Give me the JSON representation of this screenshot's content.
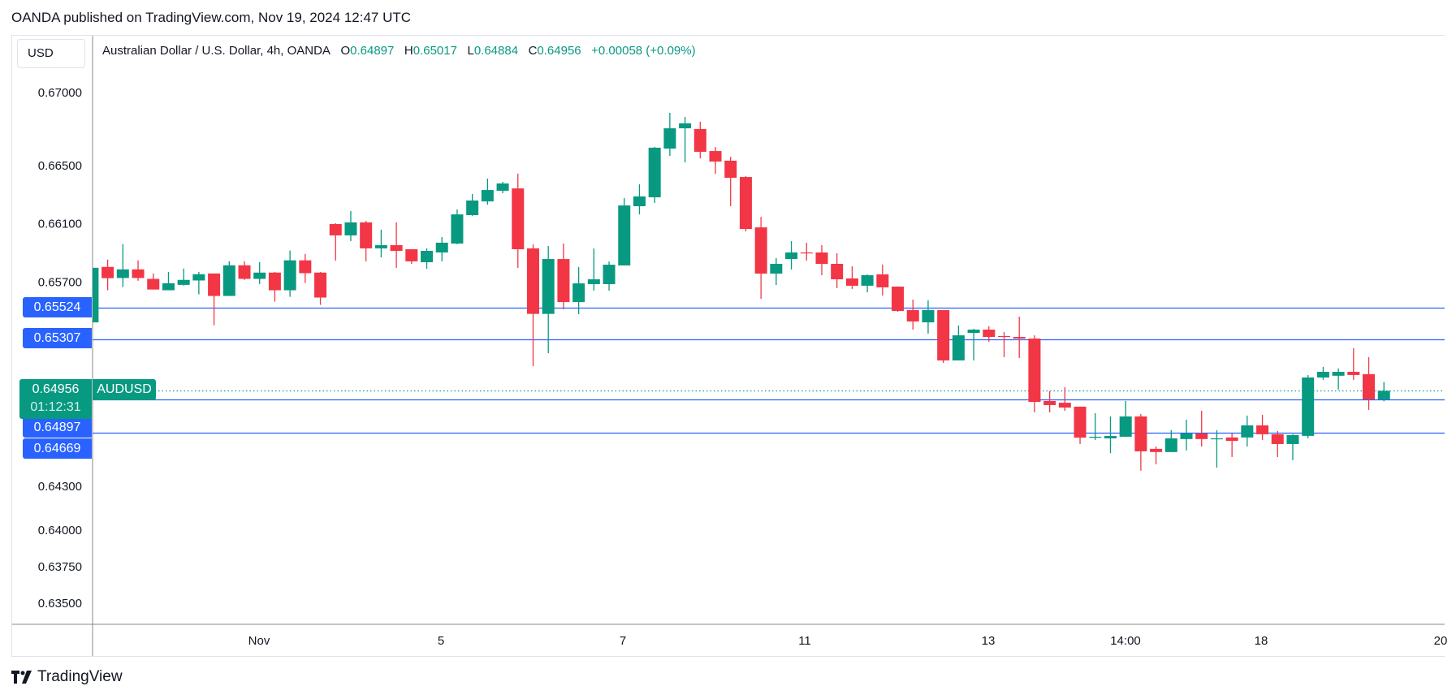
{
  "published": "OANDA published on TradingView.com, Nov 19, 2024 12:47 UTC",
  "currency_button": "USD",
  "legend": {
    "title": "Australian Dollar / U.S. Dollar, 4h, OANDA",
    "o_label": "O",
    "o": "0.64897",
    "h_label": "H",
    "h": "0.65017",
    "l_label": "L",
    "l": "0.64884",
    "c_label": "C",
    "c": "0.64956",
    "change": "+0.00058 (+0.09%)"
  },
  "price_tags": {
    "line1": "0.65524",
    "line2": "0.65307",
    "current": "0.64956",
    "countdown": "01:12:31",
    "line3": "0.64897",
    "line4": "0.64669",
    "symbol": "AUDUSD"
  },
  "branding": "TradingView",
  "colors": {
    "up": "#089981",
    "down": "#F23645",
    "hline": "#2962FF",
    "text": "#131722",
    "grid": "#E0E3EB"
  },
  "chart_data": {
    "type": "candlestick",
    "title": "Australian Dollar / U.S. Dollar, 4h, OANDA",
    "symbol": "AUDUSD",
    "interval": "4h",
    "y_axis_position": "left",
    "ylim": [
      0.6335,
      0.6723
    ],
    "y_ticks": [
      "0.67000",
      "0.66500",
      "0.66100",
      "0.65700",
      "0.64300",
      "0.64000",
      "0.63750",
      "0.63500"
    ],
    "x_ticks": [
      "Nov",
      "5",
      "7",
      "11",
      "13",
      "14:00",
      "18",
      "20"
    ],
    "horizontal_lines": [
      0.65524,
      0.65307,
      0.64897,
      0.64669
    ],
    "last_price": 0.64956,
    "grid": false,
    "ohlc_fields": [
      "open",
      "high",
      "low",
      "close"
    ],
    "candles": [
      [
        0.65425,
        0.65799,
        0.65425,
        0.65799
      ],
      [
        0.65805,
        0.65855,
        0.65645,
        0.65728
      ],
      [
        0.65729,
        0.65961,
        0.65667,
        0.65788
      ],
      [
        0.65788,
        0.6585,
        0.6571,
        0.65729
      ],
      [
        0.65723,
        0.6576,
        0.6565,
        0.6565
      ],
      [
        0.65645,
        0.65771,
        0.65645,
        0.65693
      ],
      [
        0.65682,
        0.65794,
        0.65677,
        0.65716
      ],
      [
        0.65712,
        0.65771,
        0.65617,
        0.65755
      ],
      [
        0.6576,
        0.6576,
        0.65405,
        0.65606
      ],
      [
        0.65606,
        0.65844,
        0.65606,
        0.65816
      ],
      [
        0.65816,
        0.65844,
        0.65716,
        0.65723
      ],
      [
        0.65723,
        0.65838,
        0.65688,
        0.65766
      ],
      [
        0.65766,
        0.65771,
        0.65567,
        0.65645
      ],
      [
        0.65645,
        0.65917,
        0.656,
        0.6585
      ],
      [
        0.6585,
        0.65894,
        0.65695,
        0.65762
      ],
      [
        0.65766,
        0.65771,
        0.65545,
        0.65595
      ],
      [
        0.66099,
        0.66104,
        0.65848,
        0.66021
      ],
      [
        0.66021,
        0.66188,
        0.65982,
        0.6611
      ],
      [
        0.6611,
        0.66121,
        0.65843,
        0.65932
      ],
      [
        0.65932,
        0.6606,
        0.6587,
        0.65954
      ],
      [
        0.65954,
        0.6611,
        0.65798,
        0.65915
      ],
      [
        0.65926,
        0.65926,
        0.65826,
        0.65843
      ],
      [
        0.65837,
        0.65932,
        0.65793,
        0.65915
      ],
      [
        0.65904,
        0.6601,
        0.65843,
        0.65971
      ],
      [
        0.65965,
        0.66199,
        0.6596,
        0.66165
      ],
      [
        0.6616,
        0.66305,
        0.66155,
        0.6626
      ],
      [
        0.66254,
        0.6641,
        0.66232,
        0.66332
      ],
      [
        0.66327,
        0.66388,
        0.6631,
        0.66377
      ],
      [
        0.66343,
        0.66444,
        0.65798,
        0.65926
      ],
      [
        0.65932,
        0.65959,
        0.65125,
        0.65483
      ],
      [
        0.65483,
        0.65948,
        0.65214,
        0.65859
      ],
      [
        0.65859,
        0.65965,
        0.65514,
        0.65564
      ],
      [
        0.65564,
        0.65804,
        0.65481,
        0.65692
      ],
      [
        0.65687,
        0.65931,
        0.65642,
        0.6572
      ],
      [
        0.65687,
        0.65842,
        0.65642,
        0.6582
      ],
      [
        0.65815,
        0.66277,
        0.65815,
        0.66226
      ],
      [
        0.66221,
        0.66371,
        0.66165,
        0.66288
      ],
      [
        0.66282,
        0.66627,
        0.66243,
        0.66622
      ],
      [
        0.66616,
        0.66861,
        0.66566,
        0.66755
      ],
      [
        0.66755,
        0.66833,
        0.66521,
        0.66789
      ],
      [
        0.6675,
        0.668,
        0.66549,
        0.66594
      ],
      [
        0.66599,
        0.66627,
        0.66443,
        0.66527
      ],
      [
        0.66533,
        0.6656,
        0.66221,
        0.66416
      ],
      [
        0.66421,
        0.66427,
        0.66048,
        0.66065
      ],
      [
        0.66076,
        0.66148,
        0.65586,
        0.65759
      ],
      [
        0.65759,
        0.65865,
        0.65681,
        0.65826
      ],
      [
        0.65859,
        0.65982,
        0.65787,
        0.65904
      ],
      [
        0.65904,
        0.6597,
        0.65848,
        0.65898
      ],
      [
        0.65904,
        0.65954,
        0.65748,
        0.65826
      ],
      [
        0.65826,
        0.65898,
        0.65659,
        0.6572
      ],
      [
        0.65726,
        0.65809,
        0.65654,
        0.65676
      ],
      [
        0.65676,
        0.65754,
        0.65631,
        0.65748
      ],
      [
        0.65754,
        0.65821,
        0.65609,
        0.65665
      ],
      [
        0.6567,
        0.6567,
        0.65498,
        0.65503
      ],
      [
        0.65509,
        0.65581,
        0.65375,
        0.65431
      ],
      [
        0.65425,
        0.65576,
        0.65348,
        0.65509
      ],
      [
        0.65509,
        0.65509,
        0.65147,
        0.65164
      ],
      [
        0.65164,
        0.65403,
        0.65164,
        0.65336
      ],
      [
        0.65353,
        0.65381,
        0.65164,
        0.65375
      ],
      [
        0.65375,
        0.65398,
        0.65292,
        0.65325
      ],
      [
        0.65331,
        0.65359,
        0.65186,
        0.65325
      ],
      [
        0.65325,
        0.65464,
        0.65181,
        0.65314
      ],
      [
        0.65314,
        0.65336,
        0.64808,
        0.6488
      ],
      [
        0.64886,
        0.64954,
        0.64808,
        0.64858
      ],
      [
        0.64874,
        0.6498,
        0.64819,
        0.64841
      ],
      [
        0.64847,
        0.64847,
        0.64591,
        0.64635
      ],
      [
        0.64635,
        0.64802,
        0.64619,
        0.64641
      ],
      [
        0.6463,
        0.6478,
        0.64529,
        0.64646
      ],
      [
        0.64641,
        0.64886,
        0.64641,
        0.6478
      ],
      [
        0.6478,
        0.64797,
        0.64408,
        0.64541
      ],
      [
        0.64558,
        0.64574,
        0.64452,
        0.64536
      ],
      [
        0.64536,
        0.64686,
        0.64536,
        0.6463
      ],
      [
        0.64625,
        0.64758,
        0.64547,
        0.64663
      ],
      [
        0.64663,
        0.64819,
        0.64574,
        0.64625
      ],
      [
        0.64625,
        0.64686,
        0.6443,
        0.6463
      ],
      [
        0.64636,
        0.64663,
        0.64502,
        0.64613
      ],
      [
        0.64636,
        0.64786,
        0.64574,
        0.64719
      ],
      [
        0.64719,
        0.64791,
        0.64619,
        0.64658
      ],
      [
        0.64658,
        0.6468,
        0.64502,
        0.64591
      ],
      [
        0.64591,
        0.64658,
        0.6448,
        0.64652
      ],
      [
        0.64647,
        0.65064,
        0.6463,
        0.65047
      ],
      [
        0.65047,
        0.6512,
        0.65031,
        0.65086
      ],
      [
        0.65059,
        0.65109,
        0.64964,
        0.65086
      ],
      [
        0.65086,
        0.65248,
        0.65031,
        0.65064
      ],
      [
        0.6507,
        0.65187,
        0.64825,
        0.64897
      ],
      [
        0.64897,
        0.65017,
        0.64884,
        0.64956
      ]
    ]
  }
}
